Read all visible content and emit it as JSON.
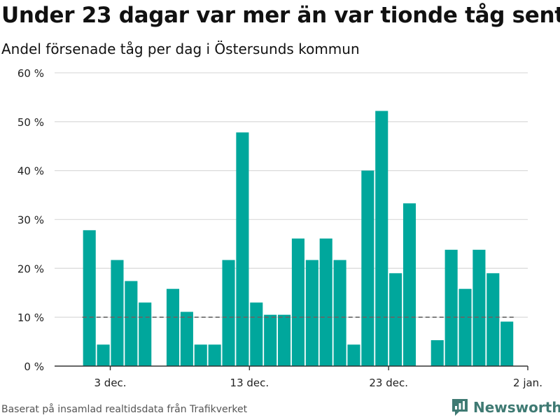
{
  "title": "Under 23 dagar var mer än var tionde tåg sent",
  "subtitle": "Andel försenade tåg per dag i Östersunds kommun",
  "source": "Baserat på insamlad realtidsdata från Trafikverket",
  "brand": "Newsworthy",
  "colors": {
    "bar": "#00a79c",
    "grid": "#dddddd",
    "reference": "#666666",
    "brand": "#3f7a73"
  },
  "chart_data": {
    "type": "bar",
    "title": "Under 23 dagar var mer än var tionde tåg sent",
    "subtitle": "Andel försenade tåg per dag i Östersunds kommun",
    "xlabel": "",
    "ylabel": "",
    "ylim": [
      0,
      60
    ],
    "y_ticks": [
      0,
      10,
      20,
      30,
      40,
      50,
      60
    ],
    "y_tick_labels": [
      "0 %",
      "10 %",
      "20 %",
      "30 %",
      "40 %",
      "50 %",
      "60 %"
    ],
    "grid": true,
    "x_range": [
      "2023-11-29",
      "2024-01-02"
    ],
    "x_ticks": [
      "2023-12-03",
      "2023-12-13",
      "2023-12-23",
      "2024-01-02"
    ],
    "x_tick_labels": [
      "3 dec.",
      "13 dec.",
      "23 dec.",
      "2 jan."
    ],
    "reference_line": {
      "value": 10
    },
    "dates": [
      "2023-12-01",
      "2023-12-02",
      "2023-12-03",
      "2023-12-04",
      "2023-12-05",
      "2023-12-06",
      "2023-12-07",
      "2023-12-08",
      "2023-12-09",
      "2023-12-10",
      "2023-12-11",
      "2023-12-12",
      "2023-12-13",
      "2023-12-14",
      "2023-12-15",
      "2023-12-16",
      "2023-12-17",
      "2023-12-18",
      "2023-12-19",
      "2023-12-20",
      "2023-12-21",
      "2023-12-22",
      "2023-12-23",
      "2023-12-24",
      "2023-12-25",
      "2023-12-26",
      "2023-12-27",
      "2023-12-28",
      "2023-12-29",
      "2023-12-30",
      "2023-12-31"
    ],
    "values": [
      27.8,
      4.4,
      21.7,
      17.4,
      13.0,
      null,
      15.8,
      11.1,
      4.4,
      4.4,
      21.7,
      47.8,
      13.0,
      10.5,
      10.5,
      26.1,
      21.7,
      26.1,
      21.7,
      4.4,
      40.0,
      52.2,
      19.0,
      33.3,
      null,
      5.3,
      23.8,
      15.8,
      23.8,
      19.0,
      9.1
    ]
  }
}
